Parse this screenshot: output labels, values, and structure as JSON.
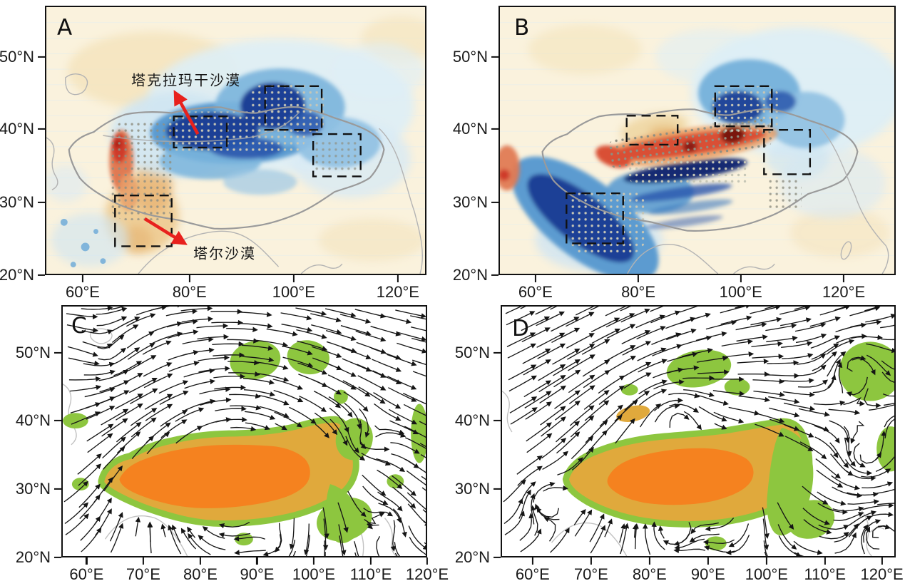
{
  "panels": [
    {
      "id": "A",
      "label": "A",
      "x_ticks": [
        "60°E",
        "80°E",
        "100°E",
        "120°E"
      ],
      "y_ticks": [
        "50°N",
        "40°N",
        "30°N",
        "20°N"
      ],
      "annotations": [
        {
          "text": "塔克拉玛干沙漠"
        },
        {
          "text": "塔尔沙漠"
        }
      ]
    },
    {
      "id": "B",
      "label": "B",
      "x_ticks": [
        "60°E",
        "80°E",
        "100°E",
        "120°E"
      ],
      "y_ticks": [
        "50°N",
        "40°N",
        "30°N",
        "20°N"
      ],
      "annotations": []
    },
    {
      "id": "C",
      "label": "C",
      "x_ticks": [
        "60°E",
        "70°E",
        "80°E",
        "90°E",
        "100°E",
        "110°E",
        "120°E"
      ],
      "y_ticks": [
        "50°N",
        "40°N",
        "30°N",
        "20°N"
      ],
      "annotations": []
    },
    {
      "id": "D",
      "label": "D",
      "x_ticks": [
        "60°E",
        "70°E",
        "80°E",
        "90°E",
        "100°E",
        "110°E",
        "120°E"
      ],
      "y_ticks": [
        "50°N",
        "40°N",
        "30°N",
        "20°N"
      ],
      "annotations": []
    }
  ],
  "colors": {
    "map_background_cream": "#faf2dd",
    "anomaly_blue_pale": "#cfe5f2",
    "anomaly_blue_mid": "#5b9bd0",
    "anomaly_blue_navy": "#1c4096",
    "anomaly_red": "#cf3a2a",
    "anomaly_red_dark": "#7a1410",
    "anomaly_tan": "#eec98c",
    "plateau_orange": "#f5821f",
    "plateau_ochre": "#e0a93c",
    "vegetation_green": "#8dc63f",
    "streamline_black": "#151515",
    "outline_gray": "#9a9a9a",
    "annotation_arrow_red": "#e8211d",
    "box_dash_black": "#111111"
  }
}
